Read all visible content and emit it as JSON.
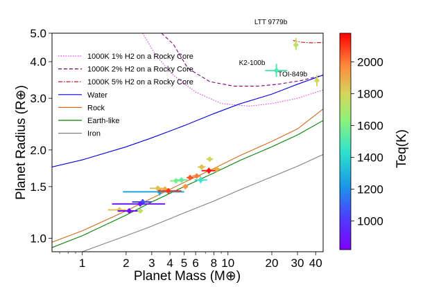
{
  "chart_data": {
    "type": "scatter",
    "xlabel": "Planet Mass (M⊕)",
    "ylabel": "Planet Radius (R⊕)",
    "xscale": "log",
    "yscale": "log",
    "xlim": [
      0.62,
      45
    ],
    "ylim": [
      0.9,
      5.0
    ],
    "xticks": [
      1,
      2,
      3,
      4,
      5,
      6,
      8,
      10,
      20,
      30,
      40
    ],
    "yticks": [
      1.0,
      1.5,
      2.0,
      3.0,
      4.0,
      5.0
    ],
    "ytick_labels": [
      "1.0",
      "1.5",
      "2.0",
      "3.0",
      "4.0",
      "5.0"
    ],
    "colorbar": {
      "label": "Teq(K)",
      "range": [
        820,
        2180
      ],
      "ticks": [
        1000,
        1200,
        1400,
        1600,
        1800,
        2000
      ]
    },
    "legend": [
      {
        "label": "1000K 1% H2 on a Rocky Core",
        "color": "#ee33ee",
        "style": "dotted"
      },
      {
        "label": "1000K 2% H2 on a Rocky Core",
        "color": "#800080",
        "style": "dashed"
      },
      {
        "label": "1000K 5% H2 on a Rocky Core",
        "color": "#cc0000",
        "style": "dashdot"
      },
      {
        "label": "Water",
        "color": "#0000dd",
        "style": "solid"
      },
      {
        "label": "Rock",
        "color": "#d2691e",
        "style": "solid"
      },
      {
        "label": "Earth-like",
        "color": "#008000",
        "style": "solid"
      },
      {
        "label": "Iron",
        "color": "#808080",
        "style": "solid"
      }
    ],
    "curves": [
      {
        "name": "1000K 1% H2 on a Rocky Core",
        "color": "#ee33ee",
        "style": "dotted",
        "x": [
          2.6,
          3.2,
          4.2,
          6.0,
          9.0,
          14,
          20,
          30,
          45
        ],
        "y": [
          5.0,
          4.2,
          3.6,
          3.15,
          2.88,
          2.82,
          2.88,
          3.0,
          3.2
        ]
      },
      {
        "name": "1000K 2% H2 on a Rocky Core",
        "color": "#800080",
        "style": "dashed",
        "x": [
          3.5,
          4.2,
          5.3,
          7.5,
          11,
          16,
          22,
          32,
          45
        ],
        "y": [
          5.0,
          4.6,
          3.8,
          3.42,
          3.3,
          3.3,
          3.35,
          3.45,
          3.6
        ]
      },
      {
        "name": "1000K 5% H2 on a Rocky Core",
        "color": "#cc0000",
        "style": "dashdot",
        "x": [
          28,
          32,
          36,
          40,
          45
        ],
        "y": [
          4.72,
          4.66,
          4.64,
          4.64,
          4.65
        ]
      },
      {
        "name": "Water",
        "color": "#0000dd",
        "style": "solid",
        "x": [
          0.62,
          1,
          2,
          3,
          5,
          8,
          12,
          20,
          30,
          45
        ],
        "y": [
          1.75,
          1.85,
          2.05,
          2.2,
          2.42,
          2.66,
          2.87,
          3.1,
          3.35,
          3.6
        ]
      },
      {
        "name": "Rock",
        "color": "#d2691e",
        "style": "solid",
        "x": [
          0.62,
          1,
          2,
          3,
          5,
          8,
          12,
          20,
          30,
          45
        ],
        "y": [
          0.97,
          1.06,
          1.24,
          1.37,
          1.55,
          1.73,
          1.91,
          2.14,
          2.36,
          2.76
        ]
      },
      {
        "name": "Earth-like",
        "color": "#008000",
        "style": "solid",
        "x": [
          0.62,
          1,
          2,
          3,
          5,
          8,
          12,
          20,
          30,
          45
        ],
        "y": [
          0.93,
          1.02,
          1.2,
          1.33,
          1.5,
          1.67,
          1.84,
          2.05,
          2.25,
          2.52
        ]
      },
      {
        "name": "Iron",
        "color": "#808080",
        "style": "solid",
        "x": [
          0.8,
          1,
          2,
          3,
          5,
          8,
          12,
          20,
          30,
          45
        ],
        "y": [
          0.88,
          0.9,
          1.02,
          1.1,
          1.22,
          1.34,
          1.46,
          1.62,
          1.76,
          1.93
        ]
      }
    ],
    "points": [
      {
        "x": 1.8,
        "y": 1.25,
        "xerr": [
          0.3,
          0.2
        ],
        "yerr": [
          0.02,
          0.02
        ],
        "teq": 1850
      },
      {
        "x": 2.1,
        "y": 1.24,
        "xerr": [
          0.35,
          0.3
        ],
        "yerr": [
          0.02,
          0.02
        ],
        "teq": 850
      },
      {
        "x": 2.5,
        "y": 1.24,
        "xerr": [
          0.1,
          0.1
        ],
        "yerr": [
          0.02,
          0.02
        ],
        "teq": 1750
      },
      {
        "x": 2.6,
        "y": 1.33,
        "xerr": [
          0.4,
          0.4
        ],
        "yerr": [
          0.03,
          0.03
        ],
        "teq": 1050
      },
      {
        "x": 2.5,
        "y": 1.31,
        "xerr": [
          0.9,
          1.2
        ],
        "yerr": [
          0.02,
          0.02
        ],
        "teq": 900
      },
      {
        "x": 3.4,
        "y": 1.44,
        "xerr": [
          1.5,
          1.6
        ],
        "yerr": [
          0.04,
          0.04
        ],
        "teq": 1250
      },
      {
        "x": 3.3,
        "y": 1.48,
        "xerr": [
          0.4,
          0.5
        ],
        "yerr": [
          0.03,
          0.03
        ],
        "teq": 1850
      },
      {
        "x": 3.7,
        "y": 1.47,
        "xerr": [
          0.3,
          0.3
        ],
        "yerr": [
          0.03,
          0.03
        ],
        "teq": 1900
      },
      {
        "x": 3.9,
        "y": 1.45,
        "xerr": [
          0.6,
          0.9
        ],
        "yerr": [
          0.03,
          0.03
        ],
        "teq": 2100
      },
      {
        "x": 4.4,
        "y": 1.57,
        "xerr": [
          0.4,
          0.4
        ],
        "yerr": [
          0.03,
          0.03
        ],
        "teq": 1600
      },
      {
        "x": 4.8,
        "y": 1.58,
        "xerr": [
          0.5,
          0.5
        ],
        "yerr": [
          0.03,
          0.03
        ],
        "teq": 1550
      },
      {
        "x": 5.1,
        "y": 1.5,
        "xerr": [
          0.2,
          0.2
        ],
        "yerr": [
          0.02,
          0.02
        ],
        "teq": 1950
      },
      {
        "x": 5.5,
        "y": 1.61,
        "xerr": [
          0.3,
          0.3
        ],
        "yerr": [
          0.03,
          0.03
        ],
        "teq": 2050
      },
      {
        "x": 6.1,
        "y": 1.63,
        "xerr": [
          0.4,
          0.4
        ],
        "yerr": [
          0.03,
          0.03
        ],
        "teq": 2000
      },
      {
        "x": 6.5,
        "y": 1.58,
        "xerr": [
          0.6,
          0.7
        ],
        "yerr": [
          0.04,
          0.04
        ],
        "teq": 1450
      },
      {
        "x": 6.6,
        "y": 1.75,
        "xerr": [
          0.4,
          0.4
        ],
        "yerr": [
          0.03,
          0.03
        ],
        "teq": 1850
      },
      {
        "x": 7.4,
        "y": 1.7,
        "xerr": [
          0.8,
          0.8
        ],
        "yerr": [
          0.04,
          0.04
        ],
        "teq": 2150
      },
      {
        "x": 7.5,
        "y": 1.86,
        "xerr": [
          0.4,
          0.4
        ],
        "yerr": [
          0.03,
          0.03
        ],
        "teq": 1800
      },
      {
        "x": 8.4,
        "y": 1.72,
        "xerr": [
          0.5,
          0.5
        ],
        "yerr": [
          0.03,
          0.03
        ],
        "teq": 1900
      },
      {
        "x": 21.5,
        "y": 3.73,
        "xerr": [
          3.5,
          4.0
        ],
        "yerr": [
          0.18,
          0.2
        ],
        "teq": 1500,
        "label": "K2-100b"
      },
      {
        "x": 29.3,
        "y": 4.56,
        "xerr": [
          0.9,
          0.9
        ],
        "yerr": [
          0.18,
          0.25
        ],
        "teq": 1750,
        "label": "LTT 9779b"
      },
      {
        "x": 40.8,
        "y": 3.45,
        "xerr": [
          1.0,
          1.0
        ],
        "yerr": [
          0.15,
          0.15
        ],
        "teq": 1800,
        "label": "TOI-849b"
      }
    ]
  }
}
